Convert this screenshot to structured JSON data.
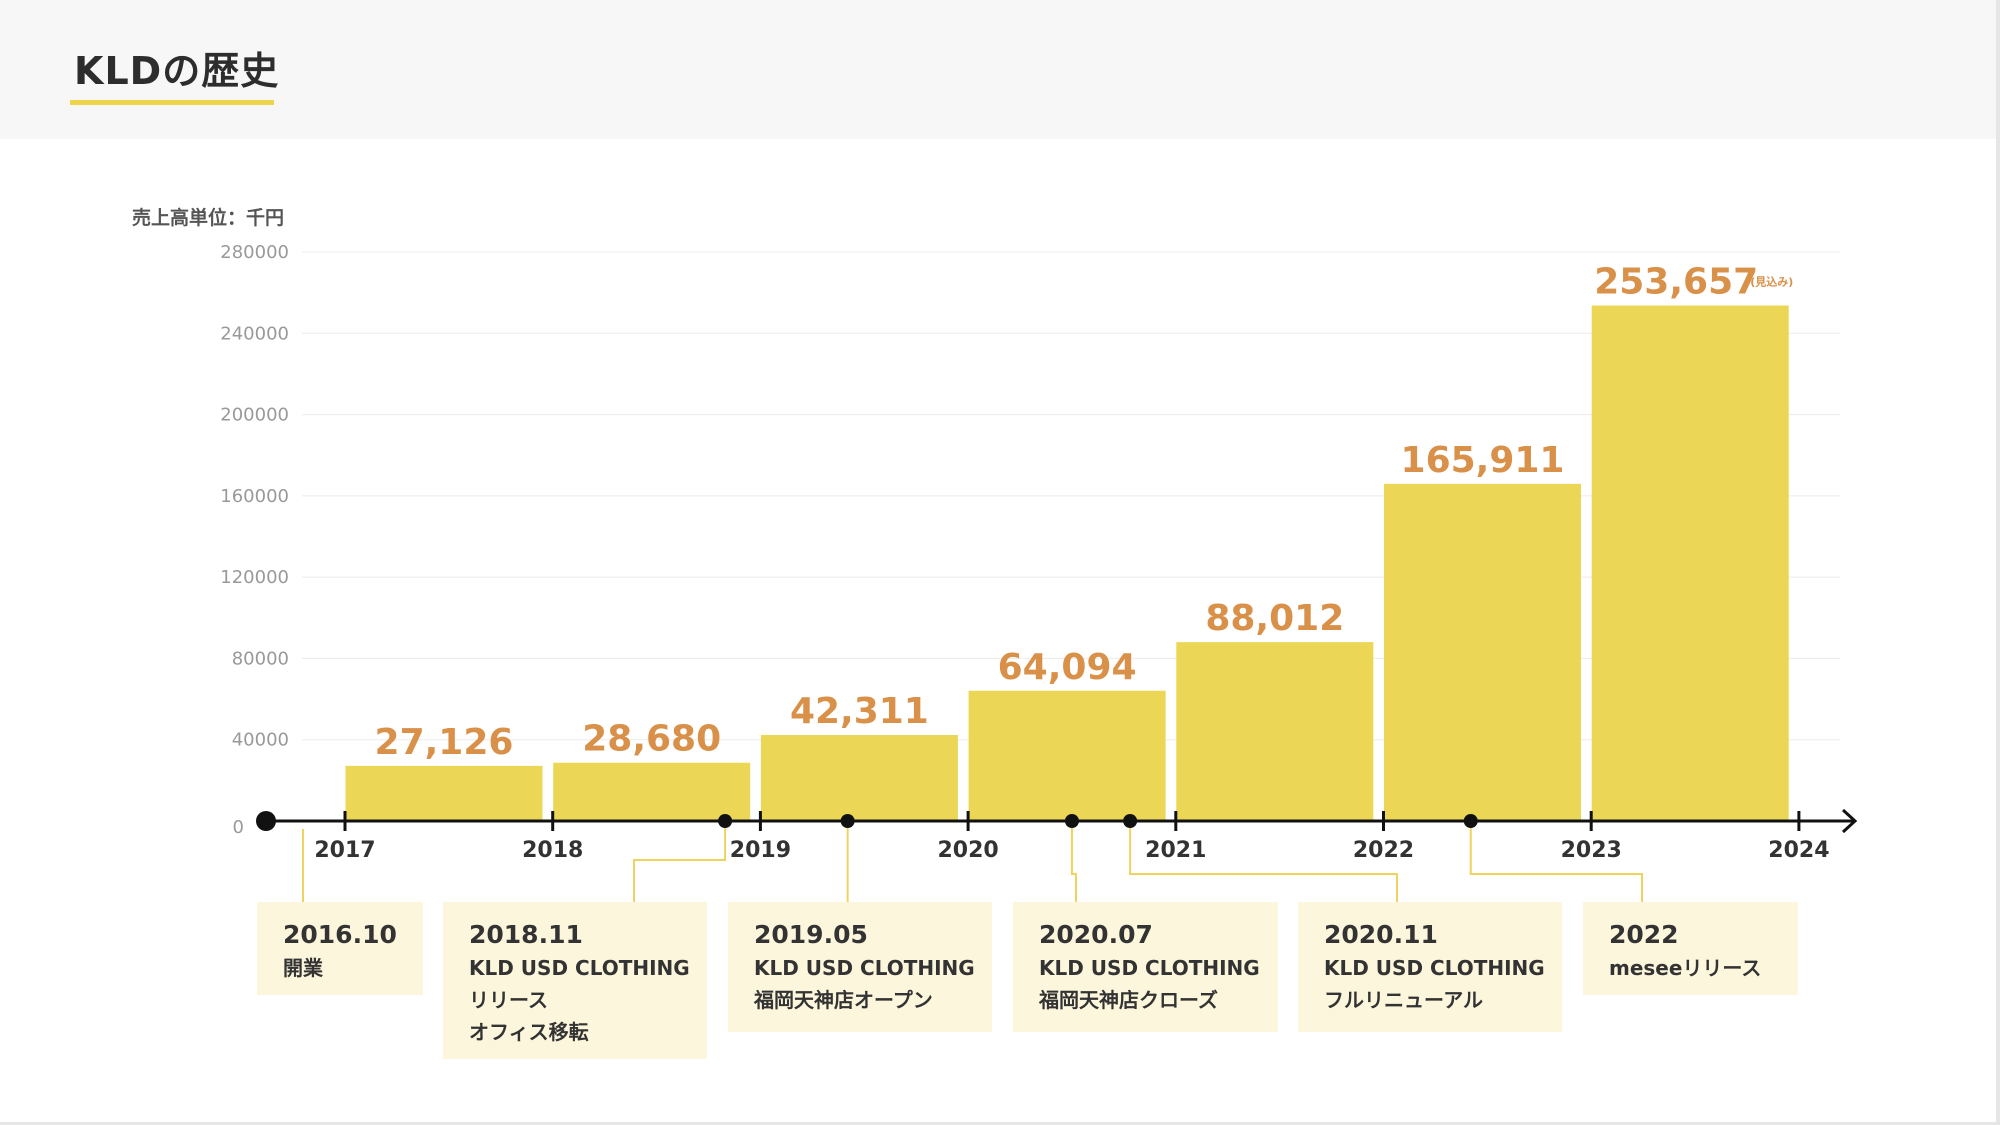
{
  "header": {
    "title": "KLDの歴史"
  },
  "chart_data": {
    "type": "bar",
    "title": "KLDの歴史",
    "ylabel": "売上高単位：千円",
    "xlabel": "",
    "ylim": [
      0,
      280000
    ],
    "yticks": [
      "280000",
      "240000",
      "200000",
      "160000",
      "120000",
      "80000",
      "40000",
      "0"
    ],
    "ytick_values": [
      280000,
      240000,
      200000,
      160000,
      120000,
      80000,
      40000,
      0
    ],
    "x_ticks": [
      "2017",
      "2018",
      "2019",
      "2020",
      "2021",
      "2022",
      "2023",
      "2024"
    ],
    "categories": [
      "2017",
      "2018",
      "2019",
      "2020",
      "2021",
      "2022",
      "2023"
    ],
    "values": [
      27126,
      28680,
      42311,
      64094,
      88012,
      165911,
      253657
    ],
    "value_labels": [
      "27,126",
      "28,680",
      "42,311",
      "64,094",
      "88,012",
      "165,911",
      "253,657"
    ],
    "estimate_note": "(見込み)",
    "grid": true,
    "bar_color": "#ebd655",
    "label_color": "#d99048"
  },
  "timeline": [
    {
      "date": "2016.10",
      "lines": [
        "開業"
      ]
    },
    {
      "date": "2018.11",
      "lines": [
        "KLD USD CLOTHING",
        "リリース",
        "オフィス移転"
      ]
    },
    {
      "date": "2019.05",
      "lines": [
        "KLD USD CLOTHING",
        "福岡天神店オープン"
      ]
    },
    {
      "date": "2020.07",
      "lines": [
        "KLD USD CLOTHING",
        "福岡天神店クローズ"
      ]
    },
    {
      "date": "2020.11",
      "lines": [
        "KLD USD CLOTHING",
        "フルリニューアル"
      ]
    },
    {
      "date": "2022",
      "lines": [
        "meseeリリース"
      ]
    }
  ]
}
